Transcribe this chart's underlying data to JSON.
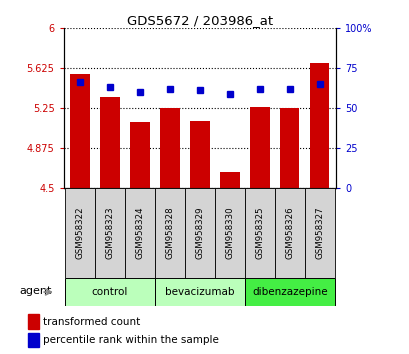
{
  "title": "GDS5672 / 203986_at",
  "samples": [
    "GSM958322",
    "GSM958323",
    "GSM958324",
    "GSM958328",
    "GSM958329",
    "GSM958330",
    "GSM958325",
    "GSM958326",
    "GSM958327"
  ],
  "bar_values": [
    5.57,
    5.35,
    5.12,
    5.25,
    5.13,
    4.65,
    5.26,
    5.25,
    5.67
  ],
  "percentile_values": [
    66,
    63,
    60,
    62,
    61,
    59,
    62,
    62,
    65
  ],
  "ylim_left": [
    4.5,
    6.0
  ],
  "ylim_right": [
    0,
    100
  ],
  "yticks_left": [
    4.5,
    4.875,
    5.25,
    5.625,
    6.0
  ],
  "ytick_labels_left": [
    "4.5",
    "4.875",
    "5.25",
    "5.625",
    "6"
  ],
  "yticks_right": [
    0,
    25,
    50,
    75,
    100
  ],
  "ytick_labels_right": [
    "0",
    "25",
    "50",
    "75",
    "100%"
  ],
  "groups": [
    {
      "label": "control",
      "span": [
        -0.5,
        2.5
      ],
      "color": "#bbffbb"
    },
    {
      "label": "bevacizumab",
      "span": [
        2.5,
        5.5
      ],
      "color": "#bbffbb"
    },
    {
      "label": "dibenzazepine",
      "span": [
        5.5,
        8.5
      ],
      "color": "#44ee44"
    }
  ],
  "bar_color": "#cc0000",
  "dot_color": "#0000cc",
  "bar_bottom": 4.5,
  "legend_bar_label": "transformed count",
  "legend_dot_label": "percentile rank within the sample",
  "agent_label": "agent",
  "tick_label_color_left": "#cc0000",
  "tick_label_color_right": "#0000cc",
  "xtick_bg_color": "#d4d4d4",
  "xlim": [
    -0.55,
    8.55
  ]
}
